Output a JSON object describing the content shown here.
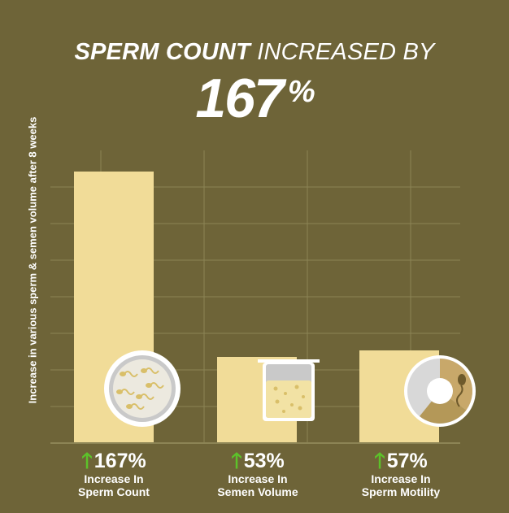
{
  "headline": {
    "bold_text": "SPERM COUNT",
    "regular_text": "INCREASED BY",
    "value": "167",
    "unit": "%"
  },
  "colors": {
    "background": "#6e6438",
    "bar": "#f1dc98",
    "grid": "#8c8455",
    "arrow": "#5cc22a"
  },
  "chart_data": {
    "type": "bar",
    "ylabel": "Increase in various sperm & semen volume after 8 weeks",
    "categories": [
      "Increase In Sperm Count",
      "Increase In Semen Volume",
      "Increase In Sperm Motility"
    ],
    "values": [
      167,
      53,
      57
    ],
    "ylim": [
      0,
      180
    ],
    "grid": true,
    "icons": [
      "petri-dish-sperm-icon",
      "beaker-icon",
      "sperm-motility-pie-icon"
    ]
  },
  "stats": [
    {
      "value": "167%",
      "line1": "Increase In",
      "line2": "Sperm Count"
    },
    {
      "value": "53%",
      "line1": "Increase In",
      "line2": "Semen Volume"
    },
    {
      "value": "57%",
      "line1": "Increase In",
      "line2": "Sperm Motility"
    }
  ]
}
